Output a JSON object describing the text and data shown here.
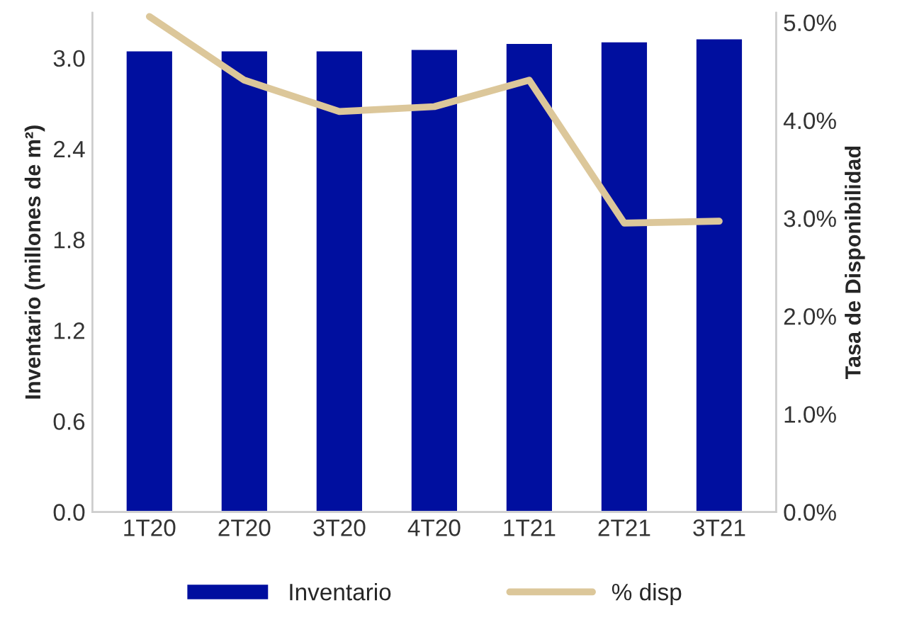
{
  "chart_data": {
    "type": "bar",
    "categories": [
      "1T20",
      "2T20",
      "3T20",
      "4T20",
      "1T21",
      "2T21",
      "3T21"
    ],
    "series": [
      {
        "name": "Inventario",
        "color": "#000f9f",
        "values": [
          3.05,
          3.05,
          3.05,
          3.06,
          3.1,
          3.11,
          3.13
        ]
      },
      {
        "name": "% disp",
        "type": "line",
        "axis": "y2",
        "color": "#dcc79a",
        "values": [
          5.06,
          4.41,
          4.09,
          4.14,
          4.41,
          2.95,
          2.97
        ]
      }
    ],
    "ylabel": "Inventario (millones de m²)",
    "y2label": "Tasa de Disponibilidad",
    "ylim": [
      0,
      3.3
    ],
    "yticks": [
      {
        "value": 0,
        "label": "0.0"
      },
      0.6,
      1.2,
      1.8,
      2.4,
      {
        "value": 3,
        "label": "3.0"
      }
    ],
    "y2lim": [
      0,
      5.1
    ],
    "y2ticks": [
      {
        "value": 0,
        "label": "0.0%"
      },
      {
        "value": 1,
        "label": "1.0%"
      },
      {
        "value": 2,
        "label": "2.0%"
      },
      {
        "value": 3,
        "label": "3.0%"
      },
      {
        "value": 4,
        "label": "4.0%"
      },
      {
        "value": 5,
        "label": "5.0%"
      }
    ],
    "legend": "bottom",
    "grid": false,
    "marker": "none",
    "line_style": "solid"
  }
}
